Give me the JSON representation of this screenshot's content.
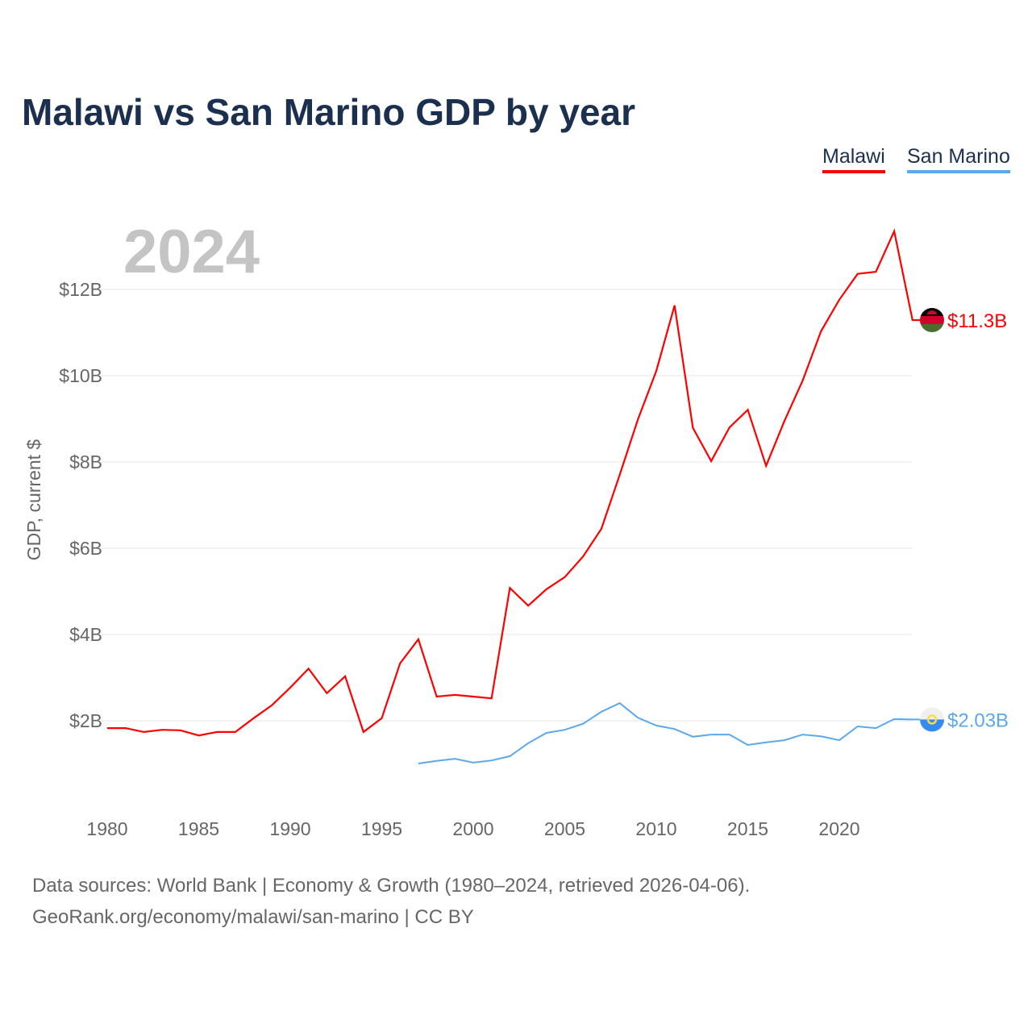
{
  "title": "Malawi vs San Marino GDP by year",
  "footer": {
    "line1": "Data sources: World Bank | Economy & Growth (1980–2024, retrieved 2026-04-06).",
    "line2": "GeoRank.org/economy/malawi/san-marino | CC BY"
  },
  "chart_data": {
    "type": "line",
    "title": "Malawi vs San Marino GDP by year",
    "year_label": "2024",
    "xlabel": "",
    "ylabel": "GDP, current $",
    "xlim": [
      1980,
      2024
    ],
    "ylim": [
      0,
      13.5
    ],
    "x_ticks": [
      "1980",
      "1985",
      "1990",
      "1995",
      "2000",
      "2005",
      "2010",
      "2015",
      "2020"
    ],
    "y_ticks": [
      {
        "v": 2,
        "label": "$2B"
      },
      {
        "v": 4,
        "label": "$4B"
      },
      {
        "v": 6,
        "label": "$6B"
      },
      {
        "v": 8,
        "label": "$8B"
      },
      {
        "v": 10,
        "label": "$10B"
      },
      {
        "v": 12,
        "label": "$12B"
      }
    ],
    "grid": true,
    "legend_position": "top-right",
    "series": [
      {
        "name": "Malawi",
        "color": "#ff0000",
        "start_year": 1980,
        "end_label": "$11.3B",
        "values": [
          1.83,
          1.83,
          1.74,
          1.79,
          1.78,
          1.66,
          1.74,
          1.74,
          2.06,
          2.36,
          2.77,
          3.21,
          2.64,
          3.03,
          1.74,
          2.06,
          3.33,
          3.89,
          2.56,
          2.6,
          2.56,
          2.52,
          5.08,
          4.67,
          5.05,
          5.33,
          5.81,
          6.45,
          7.7,
          8.99,
          10.11,
          11.63,
          8.79,
          8.02,
          8.8,
          9.21,
          7.91,
          8.95,
          9.89,
          11.03,
          11.76,
          12.36,
          12.41,
          13.35,
          11.29
        ]
      },
      {
        "name": "San Marino",
        "color": "#5ba8ee",
        "start_year": 1997,
        "end_label": "$2.03B",
        "values": [
          1.01,
          1.07,
          1.12,
          1.03,
          1.08,
          1.18,
          1.48,
          1.72,
          1.79,
          1.93,
          2.21,
          2.41,
          2.07,
          1.89,
          1.81,
          1.63,
          1.68,
          1.68,
          1.44,
          1.5,
          1.55,
          1.68,
          1.64,
          1.55,
          1.87,
          1.83,
          2.04,
          2.03
        ]
      }
    ]
  }
}
